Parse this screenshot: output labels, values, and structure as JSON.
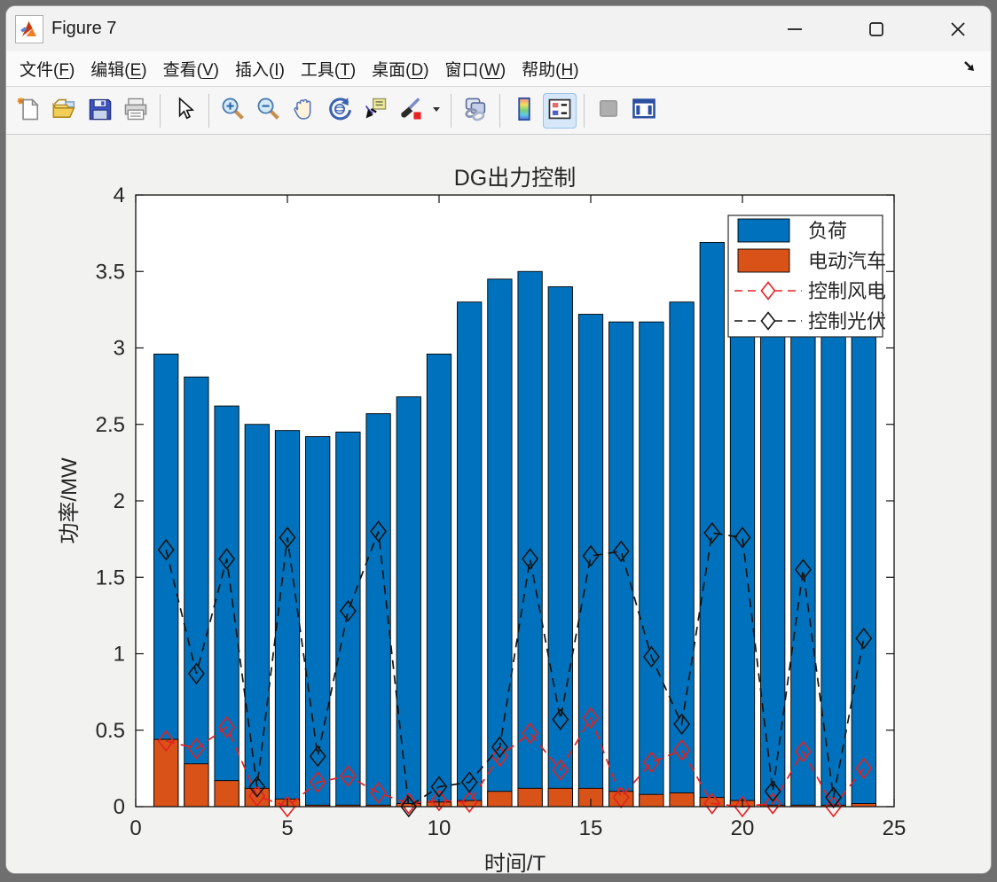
{
  "window": {
    "title": "Figure 7",
    "app_icon": "matlab-logo-icon",
    "controls": [
      {
        "name": "minimize-button",
        "icon": "minimize-icon"
      },
      {
        "name": "maximize-button",
        "icon": "maximize-icon"
      },
      {
        "name": "close-button",
        "icon": "close-icon"
      }
    ]
  },
  "menubar": {
    "items": [
      {
        "label": "文件",
        "key": "F"
      },
      {
        "label": "编辑",
        "key": "E"
      },
      {
        "label": "查看",
        "key": "V"
      },
      {
        "label": "插入",
        "key": "I"
      },
      {
        "label": "工具",
        "key": "T"
      },
      {
        "label": "桌面",
        "key": "D"
      },
      {
        "label": "窗口",
        "key": "W"
      },
      {
        "label": "帮助",
        "key": "H"
      }
    ],
    "dock_icon": "dock-arrow-icon"
  },
  "toolbar": {
    "items": [
      {
        "name": "new-figure-button",
        "icon": "new-doc-icon"
      },
      {
        "name": "open-file-button",
        "icon": "open-folder-icon"
      },
      {
        "name": "save-figure-button",
        "icon": "save-icon"
      },
      {
        "name": "print-button",
        "icon": "print-icon"
      },
      {
        "type": "separator"
      },
      {
        "name": "edit-plot-button",
        "icon": "cursor-icon"
      },
      {
        "type": "separator"
      },
      {
        "name": "zoom-in-button",
        "icon": "zoom-in-icon"
      },
      {
        "name": "zoom-out-button",
        "icon": "zoom-out-icon"
      },
      {
        "name": "pan-button",
        "icon": "hand-icon"
      },
      {
        "name": "rotate-3d-button",
        "icon": "rotate-icon"
      },
      {
        "name": "data-cursor-button",
        "icon": "datatip-icon"
      },
      {
        "name": "brush-button",
        "icon": "brush-icon"
      },
      {
        "name": "brush-dropdown",
        "icon": "dropdown-arrow-icon",
        "narrow": true
      },
      {
        "type": "separator"
      },
      {
        "name": "link-plots-button",
        "icon": "link-icon"
      },
      {
        "type": "separator"
      },
      {
        "name": "insert-colorbar-button",
        "icon": "colorbar-icon"
      },
      {
        "name": "insert-legend-button",
        "icon": "legend-icon",
        "selected": true
      },
      {
        "type": "separator"
      },
      {
        "name": "disabled-button",
        "icon": "gray-box-icon",
        "disabled": true
      },
      {
        "name": "dock-figure-button",
        "icon": "dock-icon"
      }
    ]
  },
  "chart_data": {
    "type": "bar",
    "subtype": "overlaid bars + dashed marker lines",
    "title": "DG出力控制",
    "xlabel": "时间/T",
    "ylabel": "功率/MW",
    "xlim": [
      0,
      25
    ],
    "ylim": [
      0,
      4
    ],
    "xticks": [
      0,
      5,
      10,
      15,
      20,
      25
    ],
    "yticks": [
      0,
      0.5,
      1,
      1.5,
      2,
      2.5,
      3,
      3.5,
      4
    ],
    "ytick_labels": [
      "0",
      "0.5",
      "1",
      "1.5",
      "2",
      "2.5",
      "3",
      "3.5",
      "4"
    ],
    "grid": false,
    "legend_position": "top-right",
    "categories": [
      1,
      2,
      3,
      4,
      5,
      6,
      7,
      8,
      9,
      10,
      11,
      12,
      13,
      14,
      15,
      16,
      17,
      18,
      19,
      20,
      21,
      22,
      23,
      24
    ],
    "series": [
      {
        "name": "负荷",
        "type": "bar",
        "color": "#0072BD",
        "values": [
          2.96,
          2.81,
          2.62,
          2.5,
          2.46,
          2.42,
          2.45,
          2.57,
          2.68,
          2.96,
          3.3,
          3.45,
          3.5,
          3.4,
          3.22,
          3.17,
          3.17,
          3.3,
          3.69,
          3.25,
          3.22,
          3.31,
          3.18,
          3.24
        ],
        "note_values_20_24_hidden_behind_legend": true
      },
      {
        "name": "电动汽车",
        "type": "bar",
        "color": "#D95319",
        "values": [
          0.44,
          0.28,
          0.17,
          0.12,
          0.05,
          0.01,
          0.01,
          0.01,
          0.02,
          0.03,
          0.04,
          0.1,
          0.12,
          0.12,
          0.12,
          0.1,
          0.08,
          0.09,
          0.06,
          0.04,
          0.01,
          0.01,
          0.01,
          0.02
        ]
      },
      {
        "name": "控制风电",
        "type": "line",
        "style": "dashed",
        "marker": "diamond",
        "color": "#e32020",
        "values": [
          0.43,
          0.38,
          0.52,
          0.07,
          0.0,
          0.16,
          0.2,
          0.09,
          0.02,
          0.04,
          0.03,
          0.33,
          0.48,
          0.24,
          0.58,
          0.06,
          0.29,
          0.37,
          0.02,
          0.0,
          0.02,
          0.36,
          0.0,
          0.25
        ]
      },
      {
        "name": "控制光伏",
        "type": "line",
        "style": "dashed",
        "marker": "diamond",
        "color": "#141414",
        "values": [
          1.68,
          0.87,
          1.62,
          0.13,
          1.76,
          0.33,
          1.28,
          1.8,
          0.0,
          0.13,
          0.16,
          0.39,
          1.62,
          0.57,
          1.64,
          1.67,
          0.98,
          0.54,
          1.79,
          1.76,
          0.1,
          1.55,
          0.06,
          1.1
        ]
      }
    ]
  }
}
